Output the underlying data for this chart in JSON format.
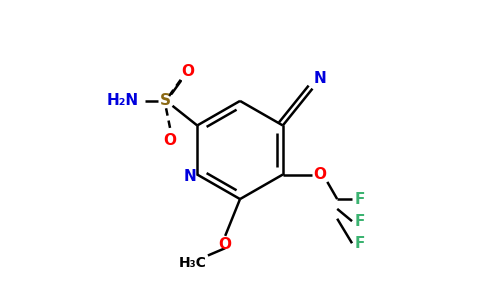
{
  "bg_color": "#ffffff",
  "bond_color": "#000000",
  "N_color": "#0000dd",
  "O_color": "#ff0000",
  "S_color": "#8b6914",
  "F_color": "#3cb371",
  "figsize": [
    4.84,
    3.0
  ],
  "dpi": 100,
  "xlim": [
    0,
    9.68
  ],
  "ylim": [
    0,
    6.0
  ]
}
